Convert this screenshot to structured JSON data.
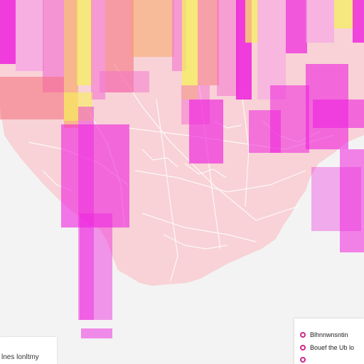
{
  "map": {
    "colors": {
      "background": "#f3f3f3",
      "land": "#f8d2d6",
      "roads": "#ffffff",
      "magenta": "#ee22dd",
      "pink": "#f36bd0",
      "salmon": "#f46e7a",
      "orange": "#f7a35c",
      "yellow": "#f6f05a"
    },
    "scale": {
      "label": "lnes lonltmy"
    },
    "legend": {
      "items": [
        {
          "label": "Blhnnwnsntin",
          "icon": "circle-marker-icon"
        },
        {
          "label": "Bouef the Ub lo",
          "icon": "circle-marker-icon"
        },
        {
          "label": "",
          "icon": "circle-marker-icon"
        }
      ]
    }
  }
}
